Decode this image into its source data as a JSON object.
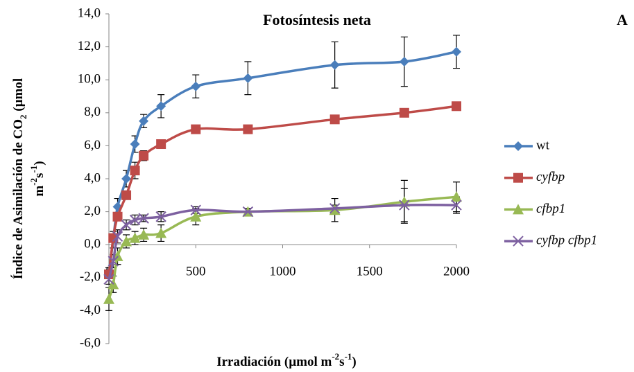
{
  "chart_data": {
    "type": "line",
    "title": "Fotosíntesis neta",
    "panel_label": "A",
    "x_label": [
      "Irradiación (µmol m",
      "-2",
      "s",
      "-1",
      ")"
    ],
    "y_label": [
      [
        "Índice de Asimilación de CO",
        "2",
        " (µmol"
      ],
      [
        "m",
        "-2",
        "s",
        "-1",
        ")"
      ]
    ],
    "x": [
      0,
      25,
      50,
      100,
      150,
      200,
      300,
      500,
      800,
      1300,
      1700,
      2000
    ],
    "xlim": [
      0,
      2000
    ],
    "xticks": [
      0,
      500,
      1000,
      1500,
      2000
    ],
    "ylim": [
      -6,
      14
    ],
    "yticks": [
      {
        "value": -6,
        "label": "-6,0"
      },
      {
        "value": -4,
        "label": "-4,0"
      },
      {
        "value": -2,
        "label": "-2,0"
      },
      {
        "value": 0,
        "label": "0,0"
      },
      {
        "value": 2,
        "label": "2,0"
      },
      {
        "value": 4,
        "label": "4,0"
      },
      {
        "value": 6,
        "label": "6,0"
      },
      {
        "value": 8,
        "label": "8,0"
      },
      {
        "value": 10,
        "label": "10,0"
      },
      {
        "value": 12,
        "label": "12,0"
      },
      {
        "value": 14,
        "label": "14,0"
      }
    ],
    "legend": "right",
    "series": [
      {
        "name": "wt",
        "color": "#4a7ebb",
        "marker": "diamond",
        "italic": false,
        "values": [
          -1.7,
          0.3,
          2.3,
          4.0,
          6.1,
          7.5,
          8.4,
          9.6,
          10.1,
          10.9,
          11.1,
          11.7
        ],
        "errors": [
          0.3,
          0.5,
          0.5,
          0.5,
          0.5,
          0.4,
          0.7,
          0.7,
          1.0,
          1.4,
          1.5,
          1.0
        ]
      },
      {
        "name": "cyfbp",
        "color": "#be4b48",
        "marker": "square",
        "italic": true,
        "values": [
          -1.8,
          0.4,
          1.7,
          3.0,
          4.5,
          5.4,
          6.1,
          7.0,
          7.0,
          7.6,
          8.0,
          8.4
        ],
        "errors": [
          0.2,
          0.2,
          0.2,
          0.2,
          0.5,
          0.3,
          0.2,
          0.2,
          0.2,
          0.2,
          0.2,
          0.2
        ]
      },
      {
        "name": "cfbp1",
        "color": "#98b954",
        "marker": "triangle",
        "italic": true,
        "values": [
          -3.3,
          -2.4,
          -0.7,
          0.2,
          0.4,
          0.6,
          0.7,
          1.7,
          2.0,
          2.1,
          2.6,
          2.9
        ],
        "errors": [
          0.7,
          0.5,
          0.5,
          0.4,
          0.4,
          0.4,
          0.5,
          0.5,
          0.2,
          0.7,
          1.3,
          0.9
        ]
      },
      {
        "name": "cyfbp cfbp1",
        "color": "#7d60a0",
        "marker": "x",
        "italic": true,
        "values": [
          -2.1,
          -1.0,
          0.5,
          1.2,
          1.5,
          1.6,
          1.7,
          2.1,
          2.0,
          2.2,
          2.4,
          2.4
        ],
        "errors": [
          0.3,
          0.4,
          0.4,
          0.3,
          0.3,
          0.2,
          0.3,
          0.2,
          0.2,
          0.2,
          1.0,
          0.5
        ]
      }
    ]
  }
}
